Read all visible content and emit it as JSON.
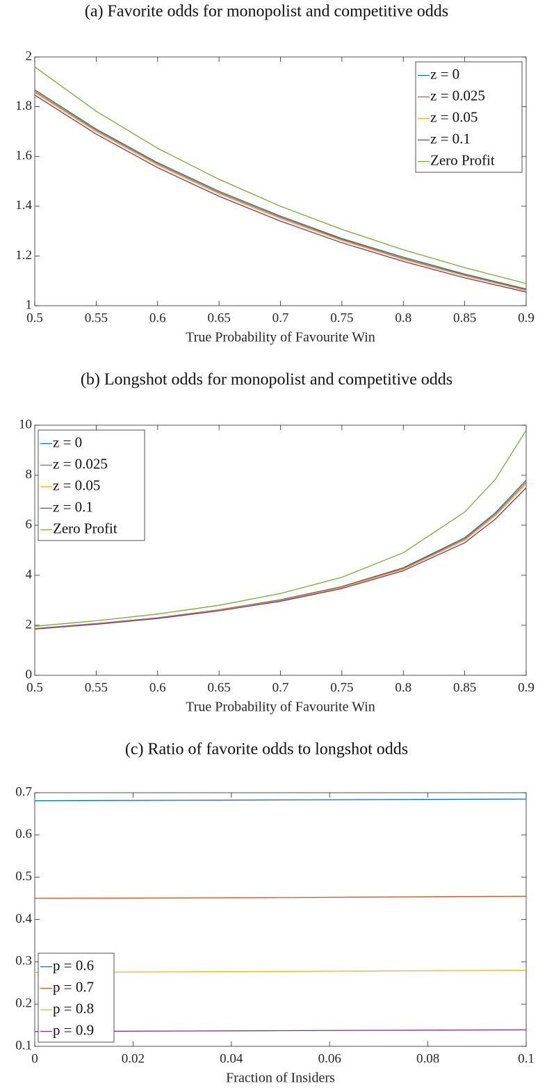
{
  "chart_data": [
    {
      "type": "line",
      "title": "(a) Favorite odds for monopolist and competitive odds",
      "xlabel": "True Probability of Favourite Win",
      "x": [
        0.5,
        0.55,
        0.6,
        0.65,
        0.7,
        0.75,
        0.8,
        0.85,
        0.9
      ],
      "series": [
        {
          "name": "z = 0",
          "color": "#0072BD",
          "values": [
            1.868,
            1.71,
            1.575,
            1.46,
            1.36,
            1.27,
            1.195,
            1.127,
            1.067
          ]
        },
        {
          "name": "z = 0.025",
          "color": "#D95319",
          "values": [
            1.862,
            1.705,
            1.57,
            1.455,
            1.355,
            1.266,
            1.19,
            1.123,
            1.064
          ]
        },
        {
          "name": "z = 0.05",
          "color": "#EDB120",
          "values": [
            1.857,
            1.7,
            1.565,
            1.45,
            1.35,
            1.262,
            1.186,
            1.12,
            1.061
          ]
        },
        {
          "name": "z = 0.1",
          "color": "#7E2F8E",
          "values": [
            1.847,
            1.69,
            1.555,
            1.44,
            1.34,
            1.253,
            1.178,
            1.112,
            1.055
          ]
        },
        {
          "name": "Zero Profit",
          "color": "#77AC30",
          "values": [
            1.96,
            1.782,
            1.633,
            1.508,
            1.4,
            1.307,
            1.225,
            1.153,
            1.089
          ]
        }
      ],
      "xlim": [
        0.5,
        0.9
      ],
      "xticks": [
        0.5,
        0.55,
        0.6,
        0.65,
        0.7,
        0.75,
        0.8,
        0.85,
        0.9
      ],
      "ylim": [
        1,
        2
      ],
      "yticks": [
        1,
        1.2,
        1.4,
        1.6,
        1.8,
        2
      ],
      "legend": "upper right"
    },
    {
      "type": "line",
      "title": "(b) Longshot odds for monopolist and competitive odds",
      "xlabel": "True Probability of Favourite Win",
      "x": [
        0.5,
        0.55,
        0.6,
        0.65,
        0.7,
        0.75,
        0.8,
        0.85,
        0.875,
        0.9
      ],
      "series": [
        {
          "name": "z = 0",
          "color": "#0072BD",
          "values": [
            1.87,
            2.07,
            2.3,
            2.62,
            3.02,
            3.55,
            4.3,
            5.5,
            6.5,
            7.8
          ]
        },
        {
          "name": "z = 0.025",
          "color": "#D95319",
          "values": [
            1.862,
            2.06,
            2.29,
            2.61,
            3.0,
            3.53,
            4.27,
            5.45,
            6.44,
            7.72
          ]
        },
        {
          "name": "z = 0.05",
          "color": "#EDB120",
          "values": [
            1.857,
            2.05,
            2.28,
            2.6,
            2.99,
            3.51,
            4.24,
            5.4,
            6.38,
            7.65
          ]
        },
        {
          "name": "z = 0.1",
          "color": "#7E2F8E",
          "values": [
            1.847,
            2.04,
            2.27,
            2.58,
            2.96,
            3.47,
            4.18,
            5.3,
            6.25,
            7.5
          ]
        },
        {
          "name": "Zero Profit",
          "color": "#77AC30",
          "values": [
            1.96,
            2.18,
            2.45,
            2.8,
            3.27,
            3.92,
            4.9,
            6.53,
            7.84,
            9.8
          ]
        }
      ],
      "xlim": [
        0.5,
        0.9
      ],
      "xticks": [
        0.5,
        0.55,
        0.6,
        0.65,
        0.7,
        0.75,
        0.8,
        0.85,
        0.9
      ],
      "ylim": [
        0,
        10
      ],
      "yticks": [
        0,
        2,
        4,
        6,
        8,
        10
      ],
      "legend": "upper left"
    },
    {
      "type": "line",
      "title": "(c) Ratio of favorite odds to longshot odds",
      "xlabel": "Fraction of Insiders",
      "x": [
        0,
        0.05,
        0.1
      ],
      "series": [
        {
          "name": "p = 0.6",
          "color": "#0072BD",
          "values": [
            0.681,
            0.683,
            0.685
          ]
        },
        {
          "name": "p = 0.7",
          "color": "#D95319",
          "values": [
            0.45,
            0.452,
            0.455
          ]
        },
        {
          "name": "p = 0.8",
          "color": "#EDB120",
          "values": [
            0.275,
            0.277,
            0.28
          ]
        },
        {
          "name": "p = 0.9",
          "color": "#7E2F8E",
          "values": [
            0.135,
            0.137,
            0.139
          ]
        }
      ],
      "xlim": [
        0,
        0.1
      ],
      "xticks": [
        0,
        0.02,
        0.04,
        0.06,
        0.08,
        0.1
      ],
      "ylim": [
        0.1,
        0.7
      ],
      "yticks": [
        0.1,
        0.2,
        0.3,
        0.4,
        0.5,
        0.6,
        0.7
      ],
      "legend": "lower left"
    }
  ]
}
